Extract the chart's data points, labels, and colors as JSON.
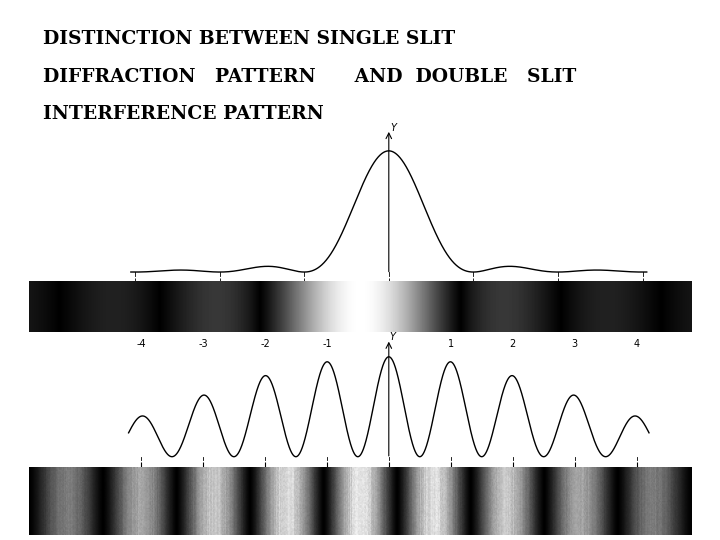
{
  "title_line1": "DISTINCTION BETWEEN SINGLE SLIT",
  "title_line2": "DIFFRACTION   PATTERN      AND  DOUBLE   SLIT",
  "title_line3": "INTERFERENCE PATTERN",
  "bg_color": "#ffffff",
  "text_color": "#000000",
  "title_fontsize": 13.5
}
